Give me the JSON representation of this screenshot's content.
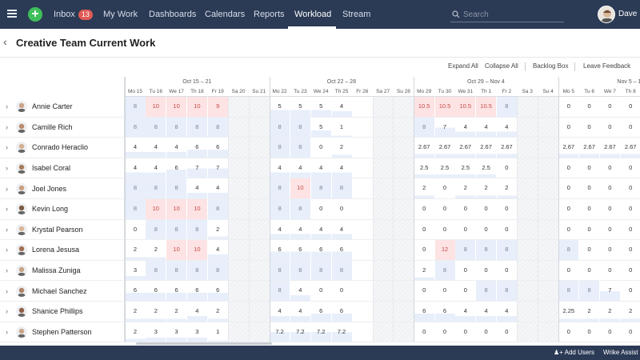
{
  "nav": {
    "inbox": "Inbox",
    "inbox_count": "13",
    "my_work": "My Work",
    "dashboards": "Dashboards",
    "calendars": "Calendars",
    "reports": "Reports",
    "workload": "Workload",
    "stream": "Stream"
  },
  "search": {
    "placeholder": "Search"
  },
  "user": {
    "name": "Dave"
  },
  "page": {
    "title": "Creative Team Current Work"
  },
  "toolbar": {
    "expand": "Expand All",
    "collapse": "Collapse All",
    "backlog": "Backlog Box",
    "feedback": "Leave Feedback"
  },
  "footer": {
    "add_users": "Add Users",
    "assist": "Wrike Assist"
  },
  "colors": {
    "over": "#fde3e3",
    "avail": "#e8effb",
    "weekend": "#f3f4f6"
  },
  "weeks": [
    "Oct 15 – 21",
    "Oct 22 – 28",
    "Oct 29 – Nov 4",
    "Nov 5 – 11"
  ],
  "days": [
    "Mo 15",
    "Tu 16",
    "We 17",
    "Th 18",
    "Fr 19",
    "Sa 20",
    "Su 21",
    "Mo 22",
    "Tu 23",
    "We 24",
    "Th 25",
    "Fr 26",
    "Sa 27",
    "Su 28",
    "Mo 29",
    "Tu 30",
    "We 31",
    "Th 1",
    "Fr 2",
    "Sa 3",
    "Su 4",
    "Mo 5",
    "Tu 6",
    "We 7",
    "Th 8"
  ],
  "people": [
    {
      "name": "Annie Carter",
      "vals": [
        "8",
        "10",
        "10",
        "10",
        "9",
        "",
        "",
        "5",
        "5",
        "5",
        "4",
        "",
        "",
        "",
        "10.5",
        "10.5",
        "10.5",
        "10.5",
        "8",
        "",
        "",
        "0",
        "0",
        "0",
        "0"
      ]
    },
    {
      "name": "Camille Rich",
      "vals": [
        "8",
        "8",
        "8",
        "8",
        "8",
        "",
        "",
        "8",
        "8",
        "5",
        "1",
        "",
        "",
        "",
        "8",
        "7",
        "4",
        "4",
        "4",
        "",
        "",
        "0",
        "0",
        "0",
        "0"
      ]
    },
    {
      "name": "Conrado Heraclio",
      "vals": [
        "4",
        "4",
        "4",
        "6",
        "6",
        "",
        "",
        "8",
        "8",
        "0",
        "2",
        "",
        "",
        "",
        "2.67",
        "2.67",
        "2.67",
        "2.67",
        "2.67",
        "",
        "",
        "2.67",
        "2.67",
        "2.67",
        "2.67"
      ]
    },
    {
      "name": "Isabel Coral",
      "vals": [
        "4",
        "4",
        "6",
        "7",
        "7",
        "",
        "",
        "4",
        "4",
        "4",
        "4",
        "",
        "",
        "",
        "2.5",
        "2.5",
        "2.5",
        "2.5",
        "0",
        "",
        "",
        "0",
        "0",
        "0",
        "0"
      ]
    },
    {
      "name": "Joel Jones",
      "vals": [
        "8",
        "8",
        "8",
        "4",
        "4",
        "",
        "",
        "8",
        "10",
        "8",
        "8",
        "",
        "",
        "",
        "2",
        "0",
        "2",
        "2",
        "2",
        "",
        "",
        "0",
        "0",
        "0",
        "0"
      ]
    },
    {
      "name": "Kevin Long",
      "vals": [
        "8",
        "10",
        "10",
        "10",
        "8",
        "",
        "",
        "8",
        "8",
        "0",
        "0",
        "",
        "",
        "",
        "0",
        "0",
        "0",
        "0",
        "0",
        "",
        "",
        "0",
        "0",
        "0",
        "0"
      ]
    },
    {
      "name": "Krystal Pearson",
      "vals": [
        "0",
        "8",
        "8",
        "8",
        "2",
        "",
        "",
        "4",
        "4",
        "4",
        "4",
        "",
        "",
        "",
        "0",
        "0",
        "0",
        "0",
        "0",
        "",
        "",
        "0",
        "0",
        "0",
        "0"
      ]
    },
    {
      "name": "Lorena Jesusa",
      "vals": [
        "2",
        "2",
        "10",
        "10",
        "4",
        "",
        "",
        "6",
        "6",
        "6",
        "6",
        "",
        "",
        "",
        "0",
        "12",
        "8",
        "8",
        "8",
        "",
        "",
        "8",
        "0",
        "0",
        "0"
      ]
    },
    {
      "name": "Malissa Zuniga",
      "vals": [
        "3",
        "8",
        "8",
        "8",
        "8",
        "",
        "",
        "8",
        "8",
        "8",
        "8",
        "",
        "",
        "",
        "2",
        "8",
        "0",
        "0",
        "0",
        "",
        "",
        "0",
        "0",
        "0",
        "0"
      ]
    },
    {
      "name": "Michael Sanchez",
      "vals": [
        "6",
        "6",
        "6",
        "6",
        "6",
        "",
        "",
        "8",
        "4",
        "0",
        "0",
        "",
        "",
        "",
        "0",
        "0",
        "0",
        "8",
        "8",
        "",
        "",
        "8",
        "8",
        "7",
        "0"
      ]
    },
    {
      "name": "Shanice Phillips",
      "vals": [
        "2",
        "2",
        "2",
        "4",
        "2",
        "",
        "",
        "4",
        "4",
        "6",
        "6",
        "",
        "",
        "",
        "6",
        "6",
        "4",
        "4",
        "4",
        "",
        "",
        "2.25",
        "2",
        "2",
        "2"
      ]
    },
    {
      "name": "Stephen Patterson",
      "vals": [
        "2",
        "3",
        "3",
        "3",
        "1",
        "",
        "",
        "7.2",
        "7.2",
        "7.2",
        "7.2",
        "",
        "",
        "",
        "0",
        "0",
        "0",
        "0",
        "0",
        "",
        "",
        "0",
        "0",
        "0",
        "0"
      ]
    }
  ]
}
